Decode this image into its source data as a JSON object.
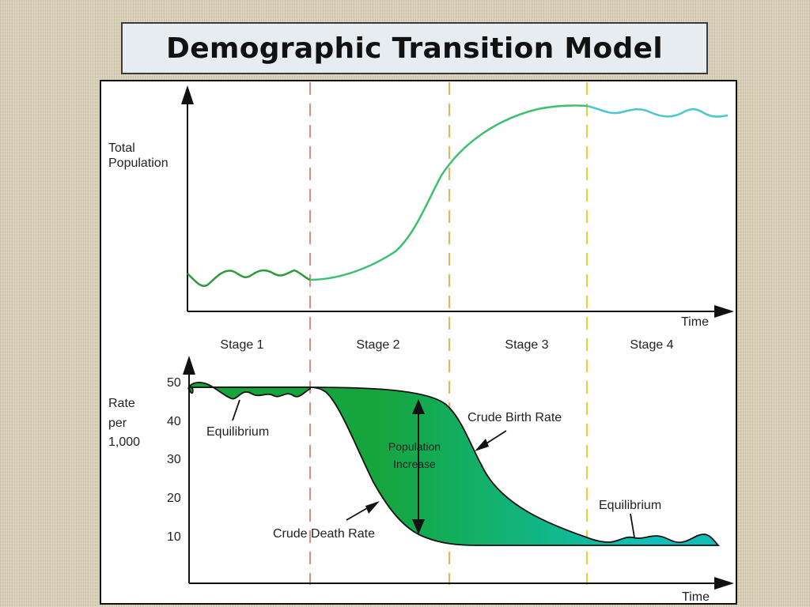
{
  "title": "Demographic Transition Model",
  "top_chart": {
    "y_label_line1": "Total",
    "y_label_line2": "Population",
    "x_label": "Time"
  },
  "stages": [
    "Stage 1",
    "Stage 2",
    "Stage 3",
    "Stage 4"
  ],
  "bottom_chart": {
    "y_label_line1": "Rate",
    "y_label_line2": "per",
    "y_label_line3": "1,000",
    "x_label": "Time",
    "ticks": [
      "50",
      "40",
      "30",
      "20",
      "10"
    ]
  },
  "annotations": {
    "equilibrium_left": "Equilibrium",
    "equilibrium_right": "Equilibrium",
    "crude_birth_rate": "Crude Birth Rate",
    "crude_death_rate": "Crude Death Rate",
    "population_increase_line1": "Population",
    "population_increase_line2": "Increase"
  },
  "colors": {
    "population_stage1": "#2a9a3a",
    "population_stage2_3": "#3cc070",
    "population_stage4": "#4bc6d0",
    "fill_green": "#16a43c",
    "fill_teal": "#10c0b8",
    "divider_stage1_2": "#e48c84",
    "divider_stage2_3": "#e8b450",
    "divider_stage3_4": "#f0cc30"
  }
}
